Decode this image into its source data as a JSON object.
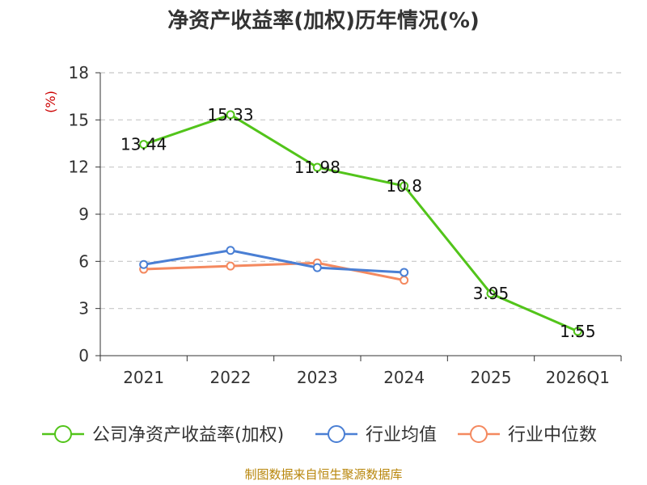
{
  "chart_data": {
    "type": "line",
    "title": "净资产收益率(加权)历年情况(%)",
    "ylabel": "(%)",
    "xlabel": "",
    "categories": [
      "2021",
      "2022",
      "2023",
      "2024",
      "2025",
      "2026Q1"
    ],
    "ylim": [
      0,
      18
    ],
    "yticks": [
      0,
      3,
      6,
      9,
      12,
      15,
      18
    ],
    "grid": true,
    "legend_position": "bottom",
    "series": [
      {
        "name": "公司净资产收益率(加权)",
        "color": "#52c41a",
        "values": [
          13.44,
          15.33,
          11.98,
          10.8,
          3.95,
          1.55
        ],
        "labels": [
          "13.44",
          "15.33",
          "11.98",
          "10.8",
          "3.95",
          "1.55"
        ]
      },
      {
        "name": "行业均值",
        "color": "#4a7fd4",
        "values": [
          5.8,
          6.7,
          5.6,
          5.3,
          null,
          null
        ]
      },
      {
        "name": "行业中位数",
        "color": "#f4895f",
        "values": [
          5.5,
          5.7,
          5.9,
          4.8,
          null,
          null
        ]
      }
    ]
  },
  "source": "制图数据来自恒生聚源数据库"
}
